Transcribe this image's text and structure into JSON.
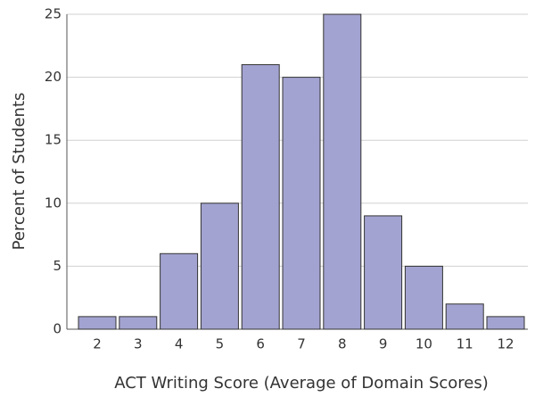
{
  "chart_data": {
    "type": "bar",
    "x_label": "ACT Writing Score (Average of Domain Scores)",
    "y_label": "Percent of Students",
    "categories": [
      "2",
      "3",
      "4",
      "5",
      "6",
      "7",
      "8",
      "9",
      "10",
      "11",
      "12"
    ],
    "values": [
      1,
      1,
      6,
      10,
      21,
      20,
      25,
      9,
      5,
      2,
      1
    ],
    "color": "#a3a3d1",
    "ylim": [
      0,
      25
    ],
    "yticks": [
      0,
      5,
      10,
      15,
      20,
      25
    ],
    "grid": true
  }
}
